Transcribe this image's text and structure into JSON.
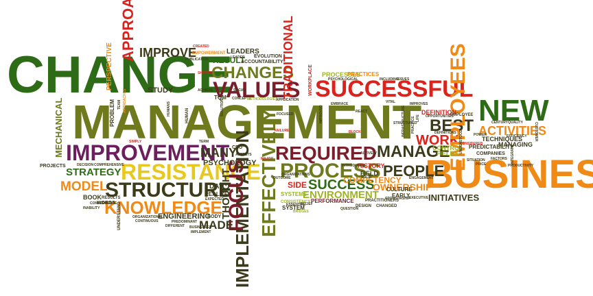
{
  "word_cloud": {
    "words": {
      "change": "CHANGE",
      "management": "MANAGEMENT",
      "business": "BUSINESS",
      "successful": "SUCCESSFUL",
      "new": "NEW",
      "improvement": "IMPROVEMENT",
      "resistance": "RESISTANCE",
      "structure": "STRUCTURE",
      "knowledge": "KNOWLEDGE",
      "values": "VALUES",
      "changes": "CHANGES",
      "process": "PROCESS",
      "required": "REQUIRED",
      "manage": "MANAGE",
      "people": "PEOPLE",
      "success": "SUCCESS",
      "environment": "ENVIRONMENT",
      "best": "BEST",
      "work": "WORK",
      "activities": "ACTIVITIES",
      "employees": "EMPLOYEES",
      "implementation": "IMPLEMENTATION",
      "effectively": "EFFECTIVELY",
      "focus": "FOCUS",
      "approach": "APPROACH",
      "traditional": "TRADITIONAL",
      "improve": "IMPROVE",
      "strategy": "STRATEGY",
      "model": "MODEL",
      "engineering": "ENGINEERING",
      "initiatives": "INITIATIVES",
      "ownership": "OWNERSHIP",
      "competency": "COMPETENCY",
      "made": "MADE",
      "many": "MANY",
      "psychology": "PSYCHOLOGY",
      "thought": "THOUGHT",
      "mechanical": "MECHANICAL",
      "perspective": "PERSPECTIVE",
      "leaders": "LEADERS",
      "result": "RESULT",
      "evolution": "EVOLUTION",
      "accountability": "ACCOUNTABILITY",
      "processes": "PROCESSES",
      "practices": "PRACTICES",
      "definition": "DEFINITION",
      "techniques": "TECHNIQUES",
      "managing": "MANAGING",
      "companies": "COMPANIES",
      "predictability": "PREDICTABILITY",
      "control": "CONTROL",
      "fields": "FIELDS",
      "history": "HISTORY",
      "field": "FIELD",
      "side": "SIDE",
      "systems": "SYSTEMS",
      "performance": "PERFORMANCE",
      "culture": "CULTURE",
      "early": "EARLY",
      "book": "BOOK",
      "words": "WORDS",
      "results": "RESULTS",
      "projects": "PROJECTS",
      "decision": "DECISION",
      "comprehensive": "COMPREHENSIVE",
      "day": "DAY",
      "realize": "REALIZE",
      "body": "BODY",
      "expected": "EXPECTED",
      "study": "STUDY",
      "tqm": "TQM",
      "term": "TERM",
      "ceo": "CEO",
      "focused": "FOCUSED",
      "application": "APPLICATION",
      "concepts": "CONCEPTS",
      "workplace": "WORKPLACE",
      "understand": "UNDERSTAND",
      "inability": "INABILITY",
      "convergence": "CONVERGENCE",
      "organizational": "ORGANIZATIONAL",
      "continuous": "CONTINUOUS",
      "predominant": "PREDOMINANT",
      "different": "DIFFERENT",
      "businesses": "BUSINESSES",
      "implement": "IMPLEMENT",
      "including": "INCLUDING",
      "issues": "ISSUES",
      "created": "CREATED",
      "empowerment": "EMPOWERMENT",
      "publication": "PUBLICATION",
      "leader": "LEADER",
      "shifted": "SHIFTED",
      "achieve": "ACHIEVE",
      "system": "SYSTEM",
      "essential": "ESSENTIAL",
      "outcome": "OUTCOME",
      "consistency": "CONSISTENCY",
      "bridges": "BRIDGES",
      "design": "DESIGN",
      "changed": "CHANGED",
      "question": "QUESTION",
      "practitioners": "PRACTITIONERS",
      "sponsorship": "SPONSORSHIP",
      "executive": "EXECUTIVE",
      "employee": "EMPLOYEE",
      "opportunities": "OPPORTUNITIES",
      "quality": "QUALITY",
      "century": "CENTURY",
      "customer": "CUSTOMER",
      "considered": "CONSIDERED",
      "integrate": "INTEGRATE",
      "situation": "SITUATION",
      "factors": "FACTORS",
      "simply": "SIMPLY",
      "human": "HUMAN",
      "problem": "PROBLEM",
      "actively": "ACTIVELY",
      "react": "REACT",
      "block": "BLOCK",
      "major": "MAJOR",
      "organizations": "ORGANIZATIONS",
      "relief": "RELIEF",
      "failure": "FAILURE",
      "solid": "SOLID",
      "aspects": "ASPECTS",
      "social": "SOCIAL",
      "infrastructure": "INFRASTRUCTURE",
      "embrace": "EMBRACE",
      "methodologies": "METHODOLOGIES",
      "solution": "SOLUTION",
      "humans": "HUMANS",
      "team": "TEAM",
      "approaches": "APPROACHES",
      "practice": "PRACTICE",
      "life": "LIFE",
      "improved": "IMPROVED",
      "vital": "VITAL",
      "understood": "UNDERSTOOD",
      "power": "POWER",
      "psychological": "PSYCHOLOGICAL",
      "improves": "IMPROVES",
      "efficiency": "EFFICIENCY",
      "price": "PRICE",
      "structured": "STRUCTURED",
      "productivity": "PRODUCTIVITY",
      "introduces": "INTRODUCES",
      "definitions": "DEFINITIONS",
      "engagement": "ENGAGEMENT"
    },
    "colors": {
      "green": "#2e6b17",
      "olive": "#6e7a1d",
      "lime": "#9cb420",
      "yellow": "#e8c81e",
      "orange": "#f08a17",
      "red": "#d9231c",
      "maroon": "#7a1e2b",
      "purple": "#6b1f5e"
    }
  }
}
